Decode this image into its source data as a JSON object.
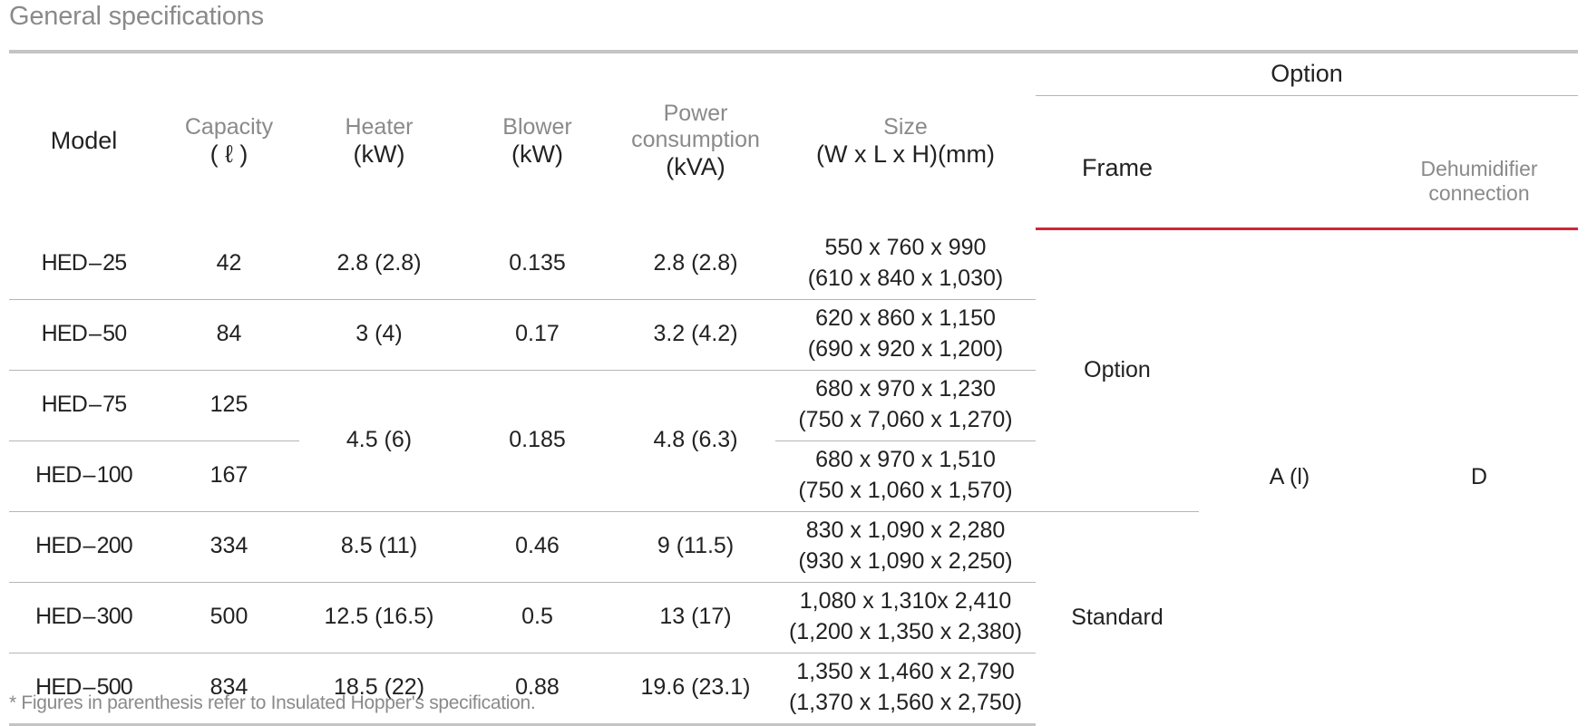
{
  "title": "General specifications",
  "columns": {
    "model": "Model",
    "capacity": [
      "Capacity",
      "( ℓ )"
    ],
    "heater": [
      "Heater",
      "(kW)"
    ],
    "blower": [
      "Blower",
      "(kW)"
    ],
    "power": [
      "Power",
      "consumption",
      "(kVA)"
    ],
    "size": [
      "Size",
      "(W x L x H)(mm)"
    ],
    "option": "Option",
    "frame": "Frame",
    "dehumidifier": [
      "Dehumidifier",
      "connection"
    ]
  },
  "rows": [
    {
      "model_prefix": "HED",
      "model_dash": "–",
      "model_num": "25",
      "capacity": "42",
      "heater": "2.8 (2.8)",
      "blower": "0.135",
      "power": "2.8 (2.8)",
      "size": [
        "550 x 760 x 990",
        "(610 x 840 x 1,030)"
      ]
    },
    {
      "model_prefix": "HED",
      "model_dash": "–",
      "model_num": "50",
      "capacity": "84",
      "heater": "3 (4)",
      "blower": "0.17",
      "power": "3.2 (4.2)",
      "size": [
        "620 x 860 x 1,150",
        "(690 x 920 x 1,200)"
      ]
    },
    {
      "model_prefix": "HED",
      "model_dash": "–",
      "model_num": "75",
      "capacity": "125",
      "heater": "4.5 (6)",
      "blower": "0.185",
      "power": "4.8 (6.3)",
      "size": [
        "680 x 970 x 1,230",
        "(750 x 7,060 x 1,270)"
      ]
    },
    {
      "model_prefix": "HED",
      "model_dash": "–",
      "model_num": "100",
      "capacity": "167",
      "size": [
        "680 x 970 x 1,510",
        "(750 x 1,060 x 1,570)"
      ]
    },
    {
      "model_prefix": "HED",
      "model_dash": "–",
      "model_num": "200",
      "capacity": "334",
      "heater": "8.5 (11)",
      "blower": "0.46",
      "power": "9 (11.5)",
      "size": [
        "830 x 1,090 x 2,280",
        "(930 x 1,090 x 2,250)"
      ]
    },
    {
      "model_prefix": "HED",
      "model_dash": "–",
      "model_num": "300",
      "capacity": "500",
      "heater": "12.5 (16.5)",
      "blower": "0.5",
      "power": "13 (17)",
      "size": [
        "1,080 x 1,310x 2,410",
        "(1,200 x 1,350 x 2,380)"
      ]
    },
    {
      "model_prefix": "HED",
      "model_dash": "–",
      "model_num": "500",
      "capacity": "834",
      "heater": "18.5 (22)",
      "blower": "0.88",
      "power": "19.6 (23.1)",
      "size": [
        "1,350 x 1,460 x 2,790",
        "(1,370 x 1,560 x 2,750)"
      ]
    }
  ],
  "frame_values": {
    "top": "Option",
    "bottom": "Standard"
  },
  "option_value": "A (l)",
  "dehumidifier_value": "D",
  "footnote": "* Figures in parenthesis refer to Insulated Hopper's specification."
}
